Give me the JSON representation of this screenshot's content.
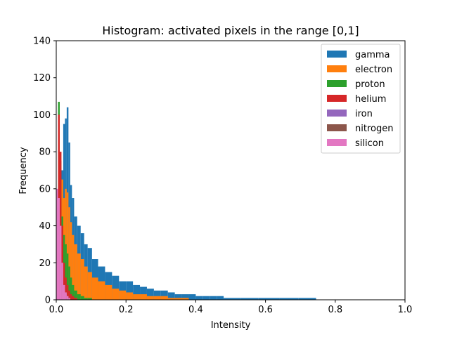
{
  "chart_data": {
    "type": "bar",
    "title": "Histogram: activated pixels in the range [0,1]",
    "xlabel": "Intensity",
    "ylabel": "Frequency",
    "xlim": [
      0.0,
      1.0
    ],
    "ylim": [
      0,
      140
    ],
    "xticks": [
      "0.0",
      "0.2",
      "0.4",
      "0.6",
      "0.8",
      "1.0"
    ],
    "yticks": [
      "0",
      "20",
      "40",
      "60",
      "80",
      "100",
      "120",
      "140"
    ],
    "grid": false,
    "legend_position": "top-right",
    "stacked": false,
    "x": [
      0.0025,
      0.0075,
      0.0125,
      0.0175,
      0.0225,
      0.0275,
      0.0325,
      0.0375,
      0.0425,
      0.0475,
      0.055,
      0.065,
      0.075,
      0.085,
      0.095,
      0.11,
      0.13,
      0.15,
      0.17,
      0.19,
      0.21,
      0.23,
      0.25,
      0.27,
      0.29,
      0.31,
      0.33,
      0.35,
      0.37,
      0.39,
      0.41,
      0.43,
      0.45,
      0.47,
      0.49,
      0.51,
      0.55,
      0.61,
      0.67,
      0.72
    ],
    "series": [
      {
        "name": "gamma",
        "color": "#1f77b4",
        "values": [
          0,
          10,
          35,
          70,
          95,
          98,
          104,
          85,
          62,
          55,
          45,
          40,
          36,
          30,
          28,
          22,
          18,
          15,
          13,
          10,
          10,
          8,
          7,
          6,
          5,
          5,
          4,
          3,
          3,
          3,
          2,
          2,
          2,
          2,
          1,
          1,
          1,
          1,
          1,
          1
        ]
      },
      {
        "name": "electron",
        "color": "#ff7f0e",
        "values": [
          0,
          25,
          60,
          65,
          55,
          60,
          58,
          50,
          42,
          35,
          30,
          25,
          22,
          18,
          15,
          12,
          10,
          8,
          6,
          5,
          4,
          3,
          3,
          2,
          2,
          2,
          1,
          1,
          1,
          0,
          0,
          0,
          0,
          0,
          0,
          0,
          0,
          0,
          0,
          0
        ]
      },
      {
        "name": "proton",
        "color": "#2ca02c",
        "values": [
          40,
          107,
          75,
          45,
          35,
          30,
          25,
          18,
          12,
          8,
          5,
          3,
          2,
          1,
          1,
          0,
          0,
          0,
          0,
          0,
          0,
          0,
          0,
          0,
          0,
          0,
          0,
          0,
          0,
          0,
          0,
          0,
          0,
          0,
          0,
          0,
          0,
          0,
          0,
          0
        ]
      },
      {
        "name": "helium",
        "color": "#d62728",
        "values": [
          50,
          100,
          80,
          40,
          20,
          12,
          8,
          5,
          3,
          2,
          1,
          0,
          0,
          0,
          0,
          0,
          0,
          0,
          0,
          0,
          0,
          0,
          0,
          0,
          0,
          0,
          0,
          0,
          0,
          0,
          0,
          0,
          0,
          0,
          0,
          0,
          0,
          0,
          0,
          0
        ]
      },
      {
        "name": "iron",
        "color": "#9467bd",
        "values": [
          35,
          30,
          20,
          10,
          5,
          3,
          2,
          1,
          0,
          0,
          0,
          0,
          0,
          0,
          0,
          0,
          0,
          0,
          0,
          0,
          0,
          0,
          0,
          0,
          0,
          0,
          0,
          0,
          0,
          0,
          0,
          0,
          0,
          0,
          0,
          0,
          0,
          0,
          0,
          0
        ]
      },
      {
        "name": "nitrogen",
        "color": "#8c564b",
        "values": [
          30,
          25,
          15,
          8,
          4,
          2,
          1,
          0,
          0,
          0,
          0,
          0,
          0,
          0,
          0,
          0,
          0,
          0,
          0,
          0,
          0,
          0,
          0,
          0,
          0,
          0,
          0,
          0,
          0,
          0,
          0,
          0,
          0,
          0,
          0,
          0,
          0,
          0,
          0,
          0
        ]
      },
      {
        "name": "silicon",
        "color": "#e377c2",
        "values": [
          60,
          55,
          40,
          20,
          8,
          4,
          2,
          1,
          0,
          0,
          0,
          0,
          0,
          0,
          0,
          0,
          0,
          0,
          0,
          0,
          0,
          0,
          0,
          0,
          0,
          0,
          0,
          0,
          0,
          0,
          0,
          0,
          0,
          0,
          0,
          0,
          0,
          0,
          0,
          0
        ]
      }
    ]
  }
}
